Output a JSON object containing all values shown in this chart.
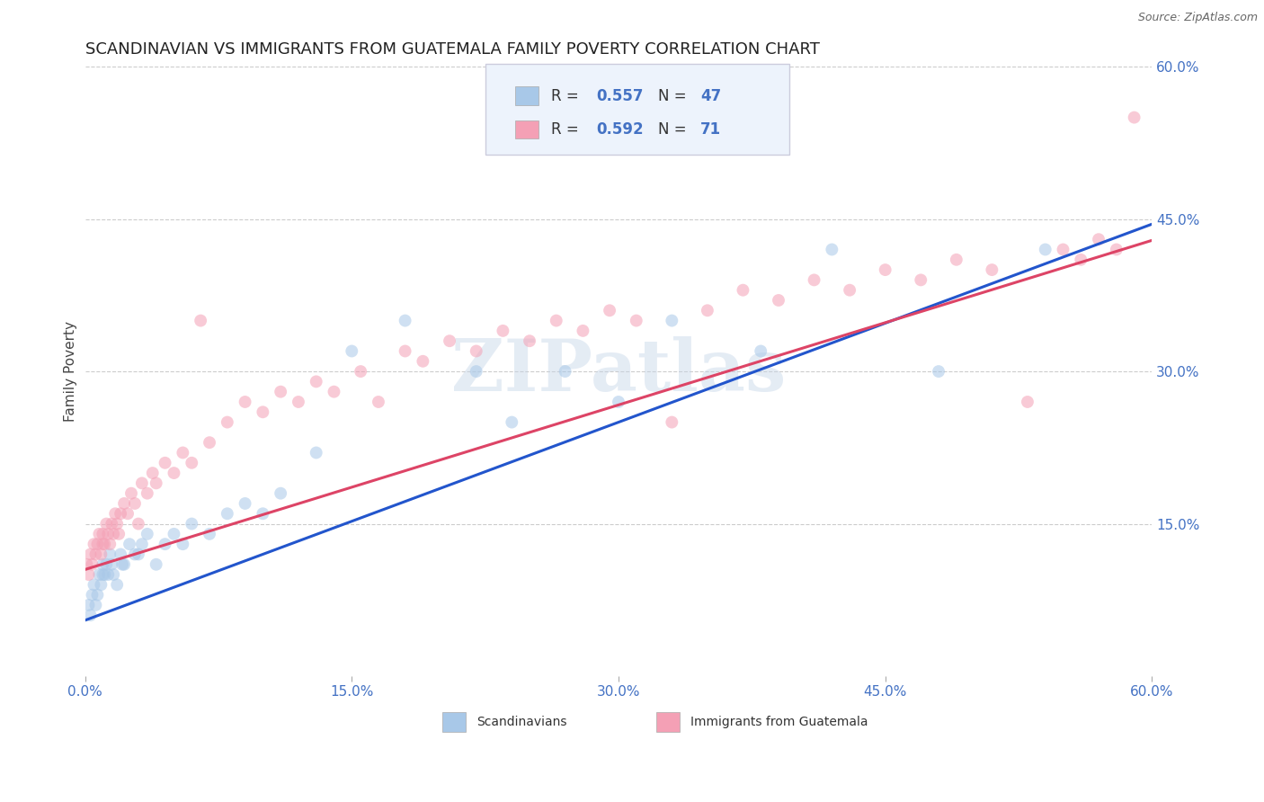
{
  "title": "SCANDINAVIAN VS IMMIGRANTS FROM GUATEMALA FAMILY POVERTY CORRELATION CHART",
  "source": "Source: ZipAtlas.com",
  "ylabel": "Family Poverty",
  "watermark": "ZIPatlas",
  "xlim": [
    0.0,
    0.6
  ],
  "ylim": [
    0.0,
    0.6
  ],
  "scandinavian_color": "#A8C8E8",
  "guatemala_color": "#F4A0B5",
  "blue_line_color": "#2255CC",
  "pink_line_color": "#DD4466",
  "R_scand": 0.557,
  "N_scand": 47,
  "R_guate": 0.592,
  "N_guate": 71,
  "marker_size": 100,
  "marker_alpha": 0.55,
  "title_fontsize": 13,
  "axis_label_fontsize": 11,
  "tick_fontsize": 11,
  "tick_color": "#4472C4",
  "legend_bg": "#EDF3FC",
  "legend_edge": "#CCCCDD"
}
